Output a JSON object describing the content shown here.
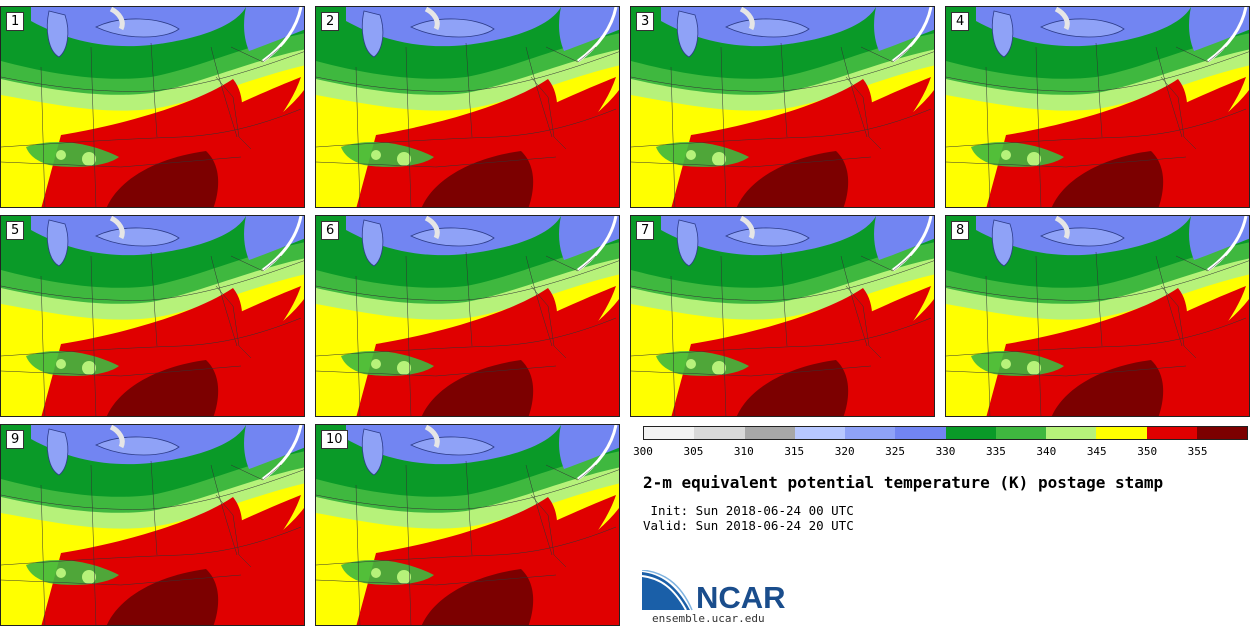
{
  "panels": [
    "1",
    "2",
    "3",
    "4",
    "5",
    "6",
    "7",
    "8",
    "9",
    "10"
  ],
  "colorbar": {
    "colors": [
      "#f3f3f3",
      "#d9d9d9",
      "#a8a8a8",
      "#b8c8ff",
      "#8fa2f7",
      "#7285f2",
      "#0a9a28",
      "#3fb83f",
      "#b6f27a",
      "#ffff00",
      "#e00000",
      "#7c0000"
    ],
    "ticks": [
      "300",
      "305",
      "310",
      "315",
      "320",
      "325",
      "330",
      "335",
      "340",
      "345",
      "350",
      "355"
    ]
  },
  "title": "2-m equivalent potential temperature (K) postage stamp",
  "init": " Init: Sun 2018-06-24 00 UTC",
  "valid": "Valid: Sun 2018-06-24 20 UTC",
  "logo": {
    "text": "NCAR",
    "brand_color": "#1a4d8c",
    "url_text": "ensemble.ucar.edu"
  }
}
